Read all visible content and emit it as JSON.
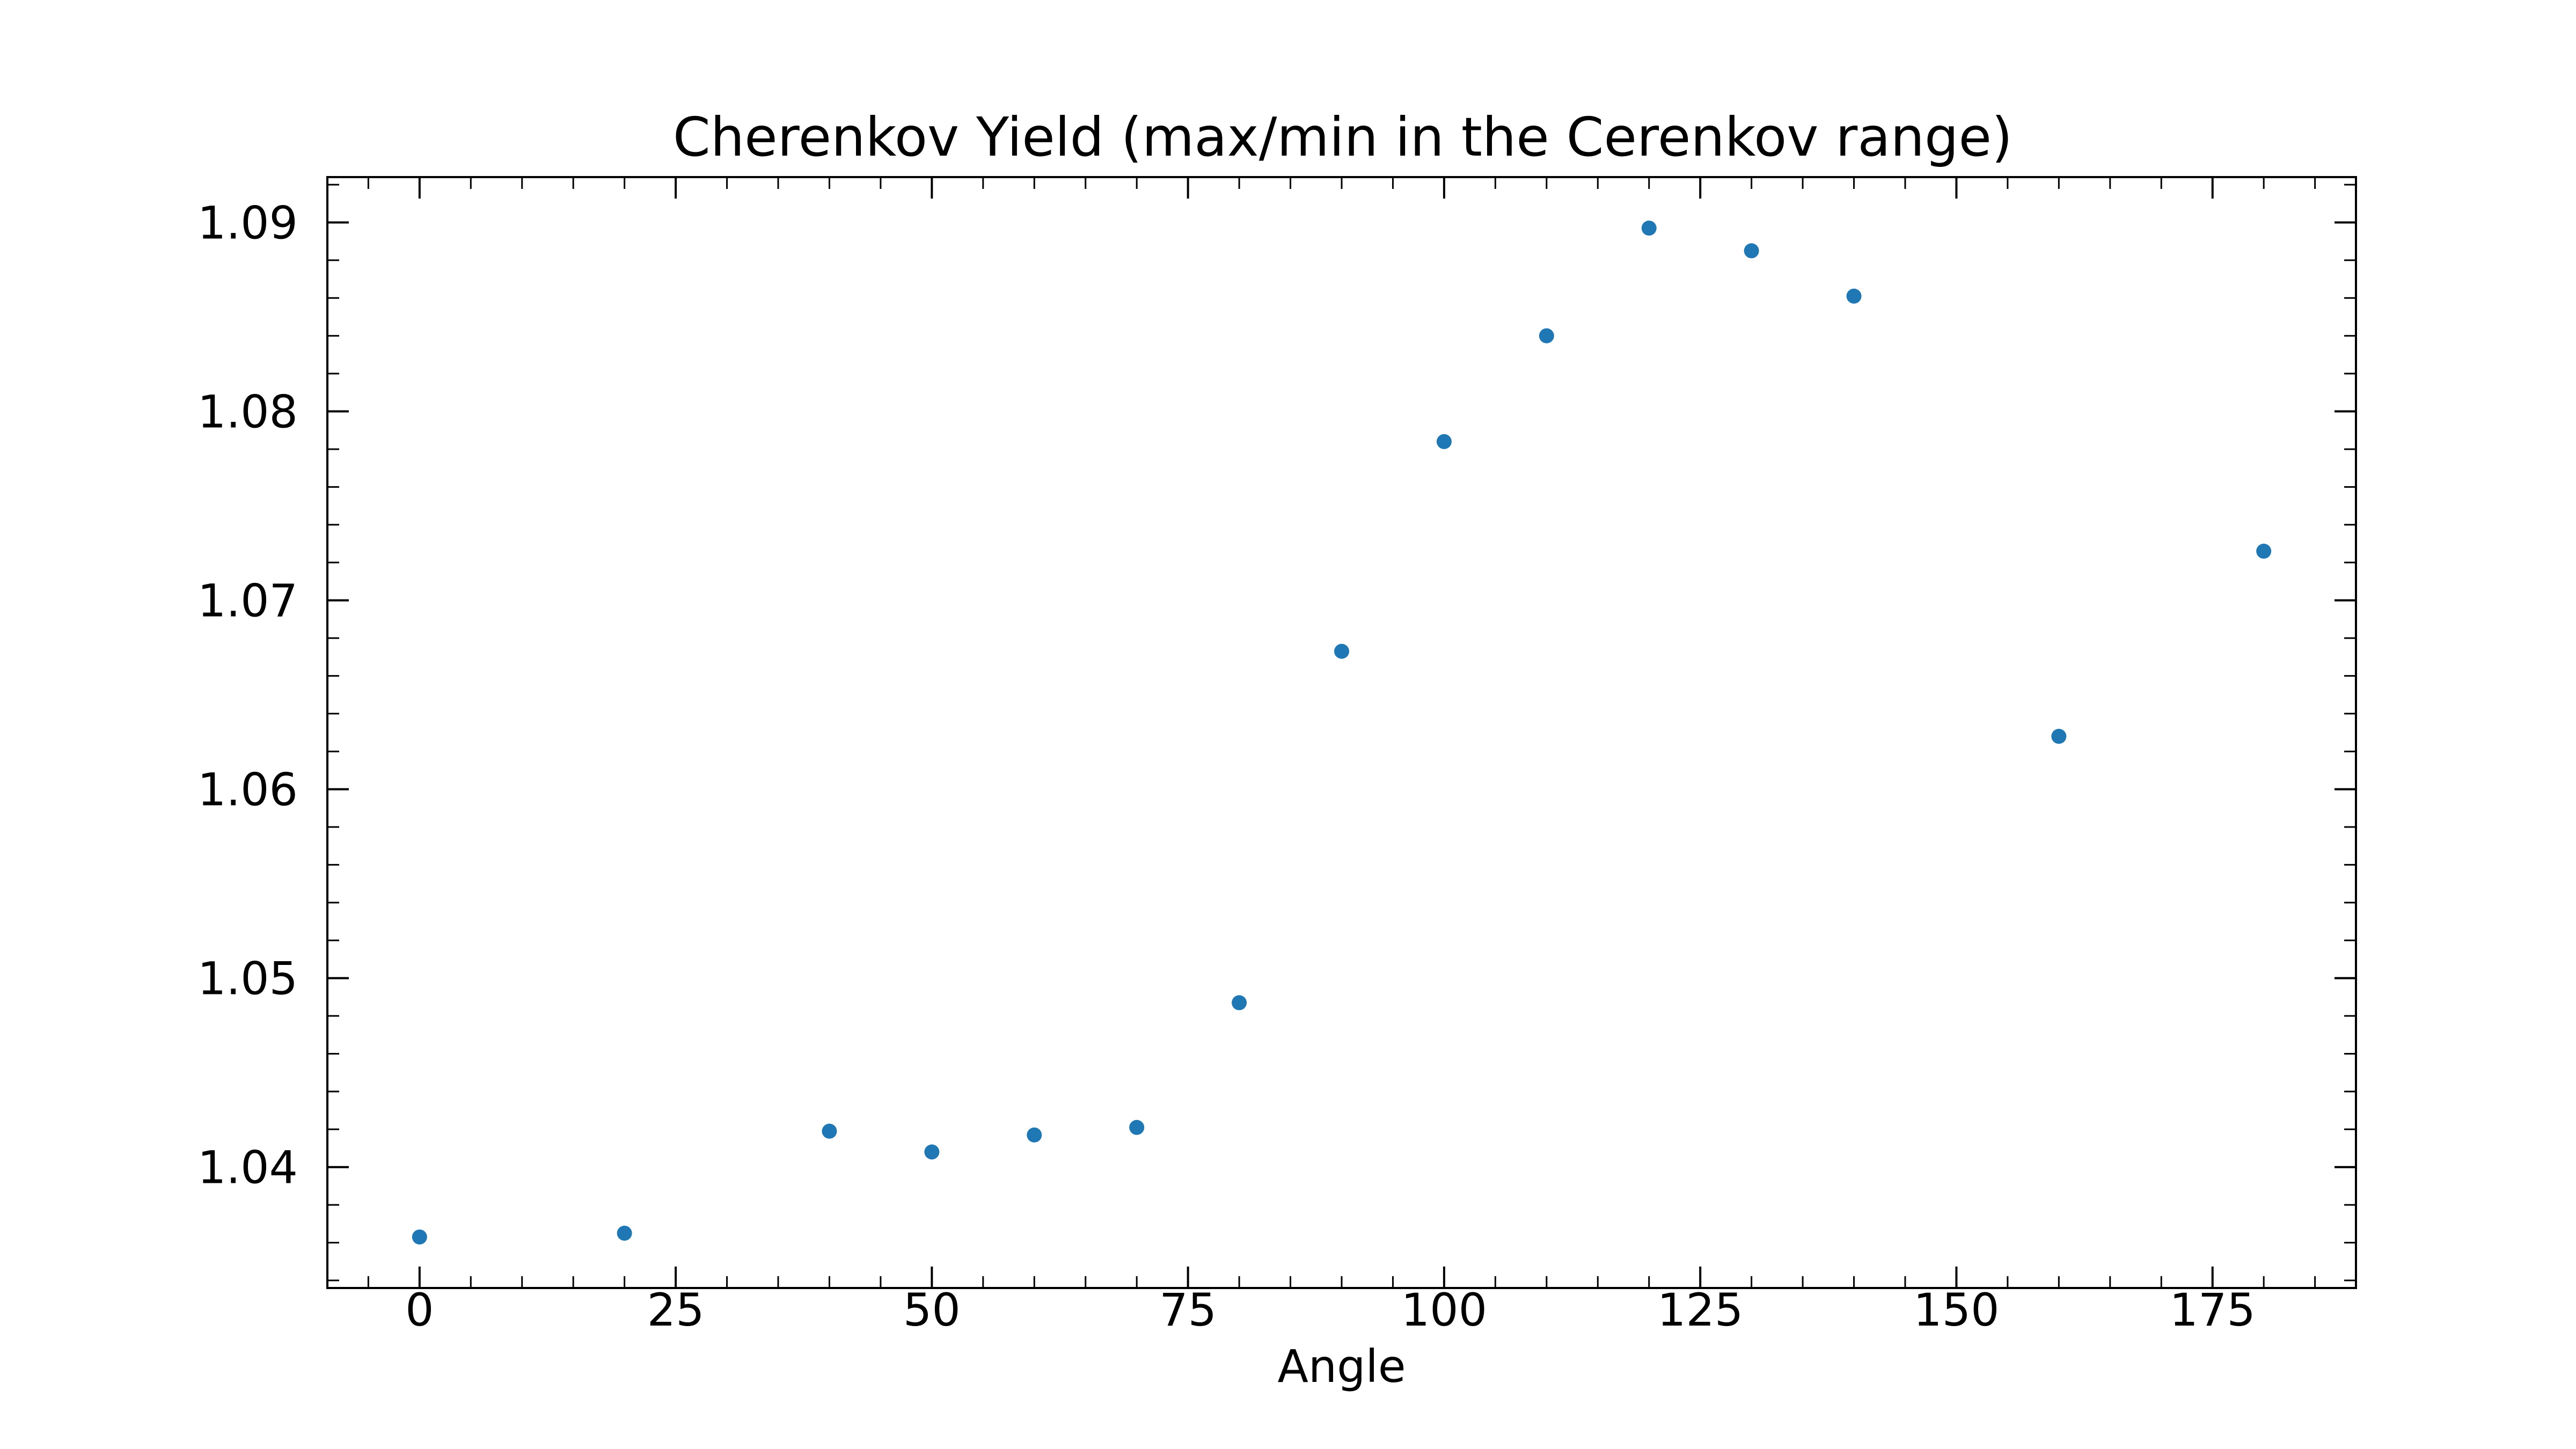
{
  "chart_data": {
    "type": "scatter",
    "title": "Cherenkov Yield (max/min in the Cerenkov range)",
    "xlabel": "Angle",
    "ylabel": "",
    "xlim": [
      -9,
      189
    ],
    "ylim": [
      1.0336,
      1.0924
    ],
    "x_ticks": [
      0,
      25,
      50,
      75,
      100,
      125,
      150,
      175
    ],
    "y_ticks": [
      1.04,
      1.05,
      1.06,
      1.07,
      1.08,
      1.09
    ],
    "x_tick_labels": [
      "0",
      "25",
      "50",
      "75",
      "100",
      "125",
      "150",
      "175"
    ],
    "y_tick_labels": [
      "1.04",
      "1.05",
      "1.06",
      "1.07",
      "1.08",
      "1.09"
    ],
    "grid": false,
    "marker_color": "#1f77b4",
    "x": [
      0,
      20,
      40,
      50,
      60,
      70,
      80,
      90,
      100,
      110,
      120,
      130,
      140,
      160,
      180
    ],
    "y": [
      1.0363,
      1.0365,
      1.0419,
      1.0408,
      1.0417,
      1.0421,
      1.0487,
      1.0673,
      1.0784,
      1.084,
      1.0897,
      1.0885,
      1.0861,
      1.0628,
      1.0726
    ]
  }
}
